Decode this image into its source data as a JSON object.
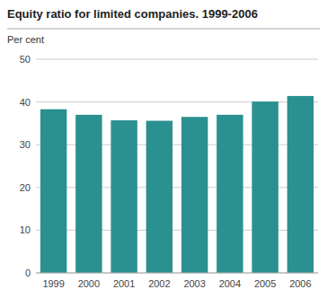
{
  "chart_data": {
    "type": "bar",
    "title": "Equity ratio for limited companies. 1999-2006",
    "ylabel": "Per cent",
    "categories": [
      "1999",
      "2000",
      "2001",
      "2002",
      "2003",
      "2004",
      "2005",
      "2006"
    ],
    "values": [
      38.3,
      37.0,
      35.7,
      35.6,
      36.5,
      37.0,
      40.1,
      41.4
    ],
    "color": "#2a9090",
    "ylim": [
      0,
      50
    ],
    "yticks": [
      0,
      10,
      20,
      30,
      40,
      50
    ],
    "grid": true
  }
}
